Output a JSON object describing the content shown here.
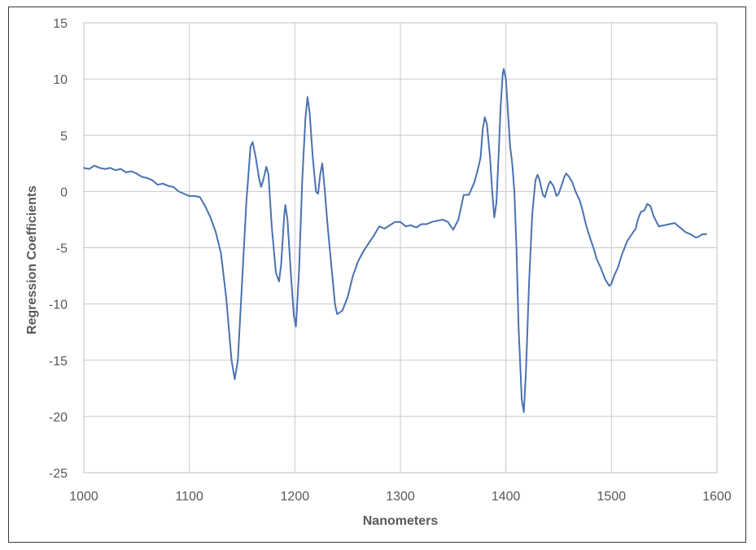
{
  "chart_data": {
    "type": "line",
    "title": "",
    "xlabel": "Nanometers",
    "ylabel": "Regression Coefficients",
    "xlim": [
      1000,
      1600
    ],
    "ylim": [
      -25,
      15
    ],
    "x_ticks": [
      1000,
      1100,
      1200,
      1300,
      1400,
      1500,
      1600
    ],
    "y_ticks": [
      15,
      10,
      5,
      0,
      -5,
      -10,
      -15,
      -20,
      -25
    ],
    "grid": true,
    "legend": "none",
    "line_color": "#4a72b0",
    "series": [
      {
        "values": [
          [
            1000,
            2.1
          ],
          [
            1005,
            2.0
          ],
          [
            1010,
            2.3
          ],
          [
            1015,
            2.1
          ],
          [
            1020,
            2.0
          ],
          [
            1025,
            2.1
          ],
          [
            1030,
            1.9
          ],
          [
            1035,
            2.0
          ],
          [
            1040,
            1.7
          ],
          [
            1045,
            1.8
          ],
          [
            1050,
            1.6
          ],
          [
            1055,
            1.3
          ],
          [
            1060,
            1.2
          ],
          [
            1065,
            1.0
          ],
          [
            1070,
            0.6
          ],
          [
            1075,
            0.7
          ],
          [
            1080,
            0.5
          ],
          [
            1085,
            0.4
          ],
          [
            1090,
            0.0
          ],
          [
            1095,
            -0.2
          ],
          [
            1100,
            -0.4
          ],
          [
            1105,
            -0.4
          ],
          [
            1110,
            -0.5
          ],
          [
            1115,
            -1.3
          ],
          [
            1120,
            -2.3
          ],
          [
            1125,
            -3.6
          ],
          [
            1130,
            -5.5
          ],
          [
            1135,
            -9.5
          ],
          [
            1140,
            -15.0
          ],
          [
            1143,
            -16.7
          ],
          [
            1146,
            -15.0
          ],
          [
            1150,
            -8.0
          ],
          [
            1154,
            -1.0
          ],
          [
            1158,
            4.0
          ],
          [
            1160,
            4.4
          ],
          [
            1163,
            3.0
          ],
          [
            1166,
            1.2
          ],
          [
            1168,
            0.4
          ],
          [
            1170,
            1.0
          ],
          [
            1173,
            2.2
          ],
          [
            1175,
            1.5
          ],
          [
            1178,
            -3.0
          ],
          [
            1182,
            -7.2
          ],
          [
            1185,
            -8.0
          ],
          [
            1187,
            -6.5
          ],
          [
            1190,
            -2.0
          ],
          [
            1191,
            -1.2
          ],
          [
            1193,
            -2.5
          ],
          [
            1196,
            -7.0
          ],
          [
            1199,
            -11.0
          ],
          [
            1201,
            -12.0
          ],
          [
            1204,
            -7.0
          ],
          [
            1207,
            1.0
          ],
          [
            1210,
            6.5
          ],
          [
            1212,
            8.4
          ],
          [
            1214,
            7.0
          ],
          [
            1217,
            3.0
          ],
          [
            1220,
            0.0
          ],
          [
            1222,
            -0.2
          ],
          [
            1224,
            1.5
          ],
          [
            1226,
            2.5
          ],
          [
            1228,
            0.5
          ],
          [
            1231,
            -3.0
          ],
          [
            1235,
            -7.0
          ],
          [
            1238,
            -10.0
          ],
          [
            1240,
            -10.9
          ],
          [
            1245,
            -10.6
          ],
          [
            1250,
            -9.4
          ],
          [
            1255,
            -7.5
          ],
          [
            1260,
            -6.2
          ],
          [
            1265,
            -5.3
          ],
          [
            1270,
            -4.6
          ],
          [
            1275,
            -3.9
          ],
          [
            1280,
            -3.1
          ],
          [
            1285,
            -3.3
          ],
          [
            1290,
            -3.0
          ],
          [
            1295,
            -2.7
          ],
          [
            1300,
            -2.7
          ],
          [
            1305,
            -3.1
          ],
          [
            1310,
            -3.0
          ],
          [
            1315,
            -3.2
          ],
          [
            1320,
            -2.9
          ],
          [
            1325,
            -2.9
          ],
          [
            1330,
            -2.7
          ],
          [
            1335,
            -2.6
          ],
          [
            1340,
            -2.5
          ],
          [
            1345,
            -2.7
          ],
          [
            1350,
            -3.4
          ],
          [
            1355,
            -2.5
          ],
          [
            1360,
            -0.3
          ],
          [
            1365,
            -0.3
          ],
          [
            1370,
            0.8
          ],
          [
            1373,
            1.8
          ],
          [
            1376,
            3.0
          ],
          [
            1378,
            5.5
          ],
          [
            1380,
            6.6
          ],
          [
            1382,
            6.0
          ],
          [
            1385,
            3.0
          ],
          [
            1387,
            0.0
          ],
          [
            1389,
            -2.3
          ],
          [
            1391,
            -1.0
          ],
          [
            1393,
            3.0
          ],
          [
            1395,
            7.5
          ],
          [
            1397,
            10.5
          ],
          [
            1398,
            10.9
          ],
          [
            1400,
            10.0
          ],
          [
            1402,
            7.0
          ],
          [
            1404,
            4.0
          ],
          [
            1406,
            2.5
          ],
          [
            1408,
            0.0
          ],
          [
            1410,
            -5.0
          ],
          [
            1412,
            -12.0
          ],
          [
            1415,
            -18.5
          ],
          [
            1417,
            -19.6
          ],
          [
            1419,
            -16.0
          ],
          [
            1422,
            -8.0
          ],
          [
            1425,
            -2.0
          ],
          [
            1428,
            1.0
          ],
          [
            1430,
            1.5
          ],
          [
            1432,
            1.0
          ],
          [
            1435,
            -0.3
          ],
          [
            1437,
            -0.5
          ],
          [
            1440,
            0.5
          ],
          [
            1442,
            0.9
          ],
          [
            1445,
            0.5
          ],
          [
            1448,
            -0.4
          ],
          [
            1450,
            -0.2
          ],
          [
            1453,
            0.6
          ],
          [
            1455,
            1.2
          ],
          [
            1457,
            1.6
          ],
          [
            1460,
            1.3
          ],
          [
            1463,
            0.8
          ],
          [
            1466,
            0.0
          ],
          [
            1470,
            -0.8
          ],
          [
            1473,
            -1.8
          ],
          [
            1476,
            -3.0
          ],
          [
            1480,
            -4.2
          ],
          [
            1483,
            -5.0
          ],
          [
            1486,
            -6.0
          ],
          [
            1490,
            -6.8
          ],
          [
            1494,
            -7.8
          ],
          [
            1498,
            -8.4
          ],
          [
            1500,
            -8.2
          ],
          [
            1503,
            -7.4
          ],
          [
            1506,
            -6.8
          ],
          [
            1510,
            -5.6
          ],
          [
            1515,
            -4.4
          ],
          [
            1520,
            -3.7
          ],
          [
            1523,
            -3.3
          ],
          [
            1525,
            -2.5
          ],
          [
            1528,
            -1.8
          ],
          [
            1531,
            -1.7
          ],
          [
            1534,
            -1.1
          ],
          [
            1537,
            -1.3
          ],
          [
            1540,
            -2.2
          ],
          [
            1545,
            -3.1
          ],
          [
            1550,
            -3.0
          ],
          [
            1555,
            -2.9
          ],
          [
            1560,
            -2.8
          ],
          [
            1565,
            -3.2
          ],
          [
            1570,
            -3.6
          ],
          [
            1575,
            -3.8
          ],
          [
            1580,
            -4.1
          ],
          [
            1583,
            -4.0
          ],
          [
            1586,
            -3.8
          ],
          [
            1590,
            -3.8
          ]
        ]
      }
    ]
  }
}
